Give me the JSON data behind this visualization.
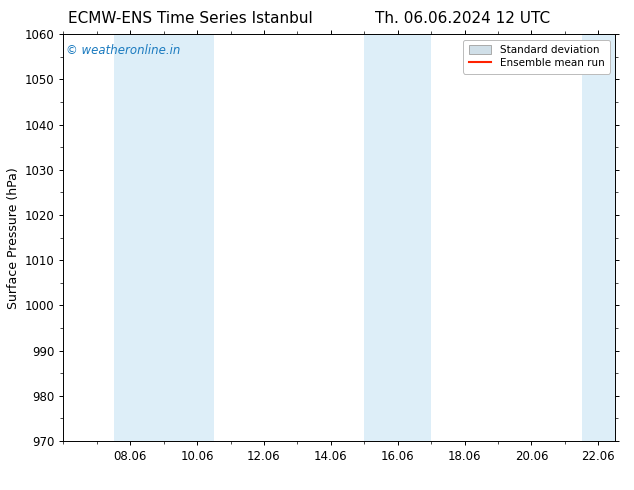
{
  "title_left": "ECMW-ENS Time Series Istanbul",
  "title_right": "Th. 06.06.2024 12 UTC",
  "ylabel": "Surface Pressure (hPa)",
  "ylim": [
    970,
    1060
  ],
  "yticks": [
    970,
    980,
    990,
    1000,
    1010,
    1020,
    1030,
    1040,
    1050,
    1060
  ],
  "xlim_start": 6.0,
  "xlim_end": 22.5,
  "xtick_labels": [
    "08.06",
    "10.06",
    "12.06",
    "14.06",
    "16.06",
    "18.06",
    "20.06",
    "22.06"
  ],
  "xtick_positions": [
    8.0,
    10.0,
    12.0,
    14.0,
    16.0,
    18.0,
    20.0,
    22.0
  ],
  "shaded_bands": [
    {
      "x_start": 7.5,
      "x_end": 9.0,
      "color": "#ddeef8"
    },
    {
      "x_start": 9.0,
      "x_end": 10.5,
      "color": "#ddeef8"
    },
    {
      "x_start": 15.0,
      "x_end": 16.0,
      "color": "#ddeef8"
    },
    {
      "x_start": 16.0,
      "x_end": 17.0,
      "color": "#ddeef8"
    },
    {
      "x_start": 21.5,
      "x_end": 22.5,
      "color": "#ddeef8"
    }
  ],
  "watermark": "© weatheronline.in",
  "watermark_color": "#1a7abf",
  "bg_color": "#ffffff",
  "plot_bg_color": "#ffffff",
  "legend_std_dev_color": "#d0dfe8",
  "legend_std_dev_edge": "#aaaaaa",
  "legend_mean_run_color": "#ff2200",
  "title_fontsize": 11,
  "label_fontsize": 9,
  "tick_fontsize": 8.5,
  "watermark_fontsize": 8.5
}
